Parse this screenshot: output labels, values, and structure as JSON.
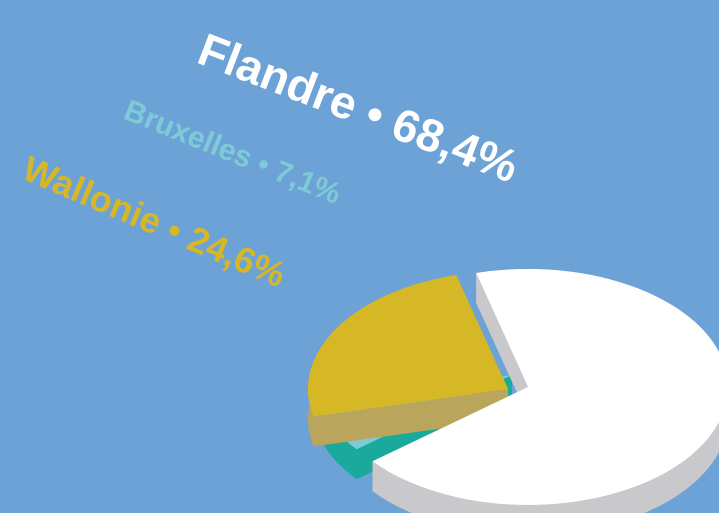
{
  "chart_data": {
    "type": "pie",
    "categories": [
      "Flandre",
      "Bruxelles",
      "Wallonie"
    ],
    "values": [
      68.4,
      7.1,
      24.6
    ],
    "value_labels": [
      "68,4%",
      "7,1%",
      "24,6%"
    ],
    "colors": [
      "#ffffff",
      "#7ecbd8",
      "#d6b826"
    ]
  }
}
